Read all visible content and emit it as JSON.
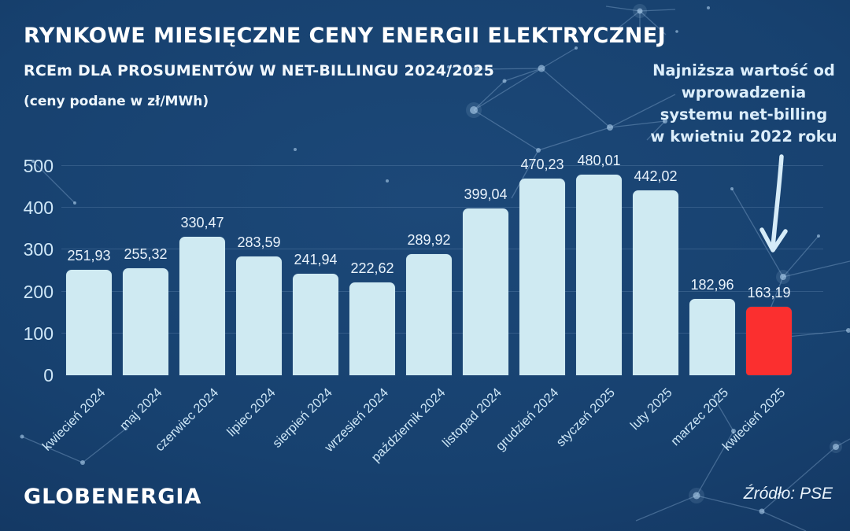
{
  "header": {
    "title": "RYNKOWE MIESIĘCZNE CENY ENERGII ELEKTRYCZNEJ",
    "subtitle": "RCEm DLA PROSUMENTÓW W NET-BILLINGU 2024/2025",
    "unit_note": "(ceny podane w zł/MWh)"
  },
  "annotation": {
    "lines": [
      "Najniższa wartość od",
      "wprowadzenia",
      "systemu net-billing",
      "w kwietniu 2022 roku"
    ]
  },
  "chart_data": {
    "type": "bar",
    "title": "RYNKOWE MIESIĘCZNE CENY ENERGII ELEKTRYCZNEJ",
    "subtitle": "RCEm DLA PROSUMENTÓW W NET-BILLINGU 2024/2025",
    "unit": "zł/MWh",
    "categories": [
      "kwiecień 2024",
      "maj 2024",
      "czerwiec 2024",
      "lipiec 2024",
      "sierpień 2024",
      "wrzesień 2024",
      "październik 2024",
      "listopad 2024",
      "grudzień 2024",
      "styczeń 2025",
      "luty 2025",
      "marzec 2025",
      "kwiecień 2025"
    ],
    "values": [
      251.93,
      255.32,
      330.47,
      283.59,
      241.94,
      222.62,
      289.92,
      399.04,
      470.23,
      480.01,
      442.02,
      182.96,
      163.19
    ],
    "value_labels": [
      "251,93",
      "255,32",
      "330,47",
      "283,59",
      "241,94",
      "222,62",
      "289,92",
      "399,04",
      "470,23",
      "480,01",
      "442,02",
      "182,96",
      "163,19"
    ],
    "ylim": [
      0,
      500
    ],
    "yticks": [
      0,
      100,
      200,
      300,
      400,
      500
    ],
    "grid": true,
    "legend": false,
    "highlight_index": 12,
    "bar_color": "#cfeaf2",
    "highlight_color": "#fb2f2f"
  },
  "footer": {
    "brand": "GLOBENERGIA",
    "source": "Źródło: PSE"
  },
  "colors": {
    "background": "#17416f",
    "title": "#ffffff",
    "tick_labels": "#cfe7f7",
    "value_labels": "#e9f3fc",
    "annotation": "#dceefb",
    "arrow": "#d6ecf8",
    "bar": "#cfeaf2",
    "highlight": "#fb2f2f"
  }
}
